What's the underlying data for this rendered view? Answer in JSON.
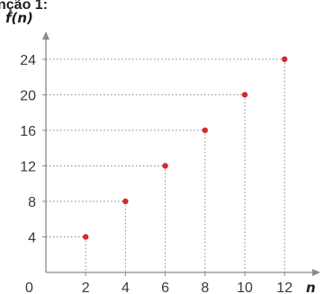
{
  "header": {
    "clipped_text": "nção 1:"
  },
  "chart_data": {
    "type": "scatter",
    "xlabel": "n",
    "ylabel": "f(n)",
    "origin_label": "0",
    "xlim": [
      0,
      13.3
    ],
    "ylim": [
      0,
      27
    ],
    "x_ticks": [
      2,
      4,
      6,
      8,
      10,
      12
    ],
    "y_ticks": [
      4,
      8,
      12,
      16,
      20,
      24
    ],
    "grid": false,
    "guide_lines": "dotted",
    "series": [
      {
        "x": [
          2,
          4,
          6,
          8,
          10,
          12
        ],
        "y": [
          4,
          8,
          12,
          16,
          20,
          24
        ]
      }
    ]
  },
  "colors": {
    "point": "#d42a2a",
    "axis": "#8a8a8a",
    "guide": "#8f8f8f",
    "text": "#3a3a3a"
  }
}
